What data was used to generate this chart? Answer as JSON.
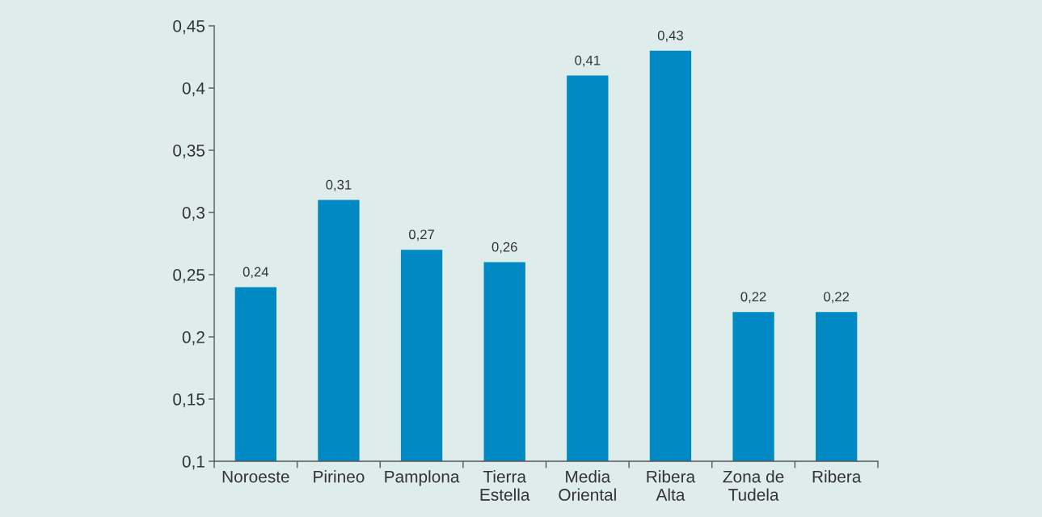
{
  "chart_data": {
    "type": "bar",
    "categories": [
      "Noroeste",
      "Pirineo",
      "Pamplona",
      "Tierra\nEstella",
      "Media\nOriental",
      "Ribera\nAlta",
      "Zona de\nTudela",
      "Ribera"
    ],
    "values": [
      0.24,
      0.31,
      0.27,
      0.26,
      0.41,
      0.43,
      0.22,
      0.22
    ],
    "value_labels": [
      "0,24",
      "0,31",
      "0,27",
      "0,26",
      "0,41",
      "0,43",
      "0,22",
      "0,22"
    ],
    "color": "#0089c2",
    "ylim": [
      0.1,
      0.45
    ],
    "yticks": [
      {
        "value": 0.1,
        "label": "0,1"
      },
      {
        "value": 0.15,
        "label": "0,15"
      },
      {
        "value": 0.2,
        "label": "0,2"
      },
      {
        "value": 0.25,
        "label": "0,25"
      },
      {
        "value": 0.3,
        "label": "0,3"
      },
      {
        "value": 0.35,
        "label": "0,35"
      },
      {
        "value": 0.4,
        "label": "0,4"
      },
      {
        "value": 0.45,
        "label": "0,45"
      }
    ]
  }
}
